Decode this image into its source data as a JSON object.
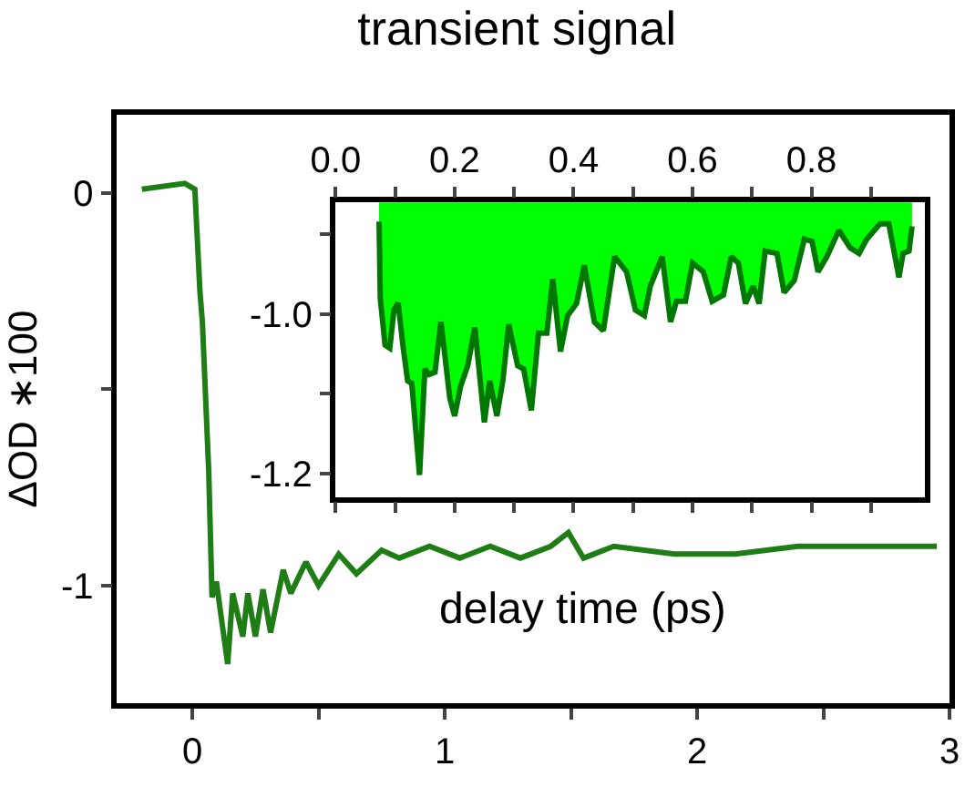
{
  "chart_data": [
    {
      "type": "line",
      "title": "transient signal",
      "xlabel": "delay time (ps)",
      "ylabel": "ΔOD ∗100",
      "x": [
        -0.2,
        -0.03,
        0.01,
        0.03,
        0.04,
        0.065,
        0.078,
        0.095,
        0.11,
        0.14,
        0.16,
        0.2,
        0.22,
        0.25,
        0.28,
        0.31,
        0.36,
        0.39,
        0.45,
        0.5,
        0.58,
        0.65,
        0.75,
        0.82,
        0.94,
        1.06,
        1.18,
        1.3,
        1.42,
        1.49,
        1.55,
        1.67,
        1.91,
        2.15,
        2.4,
        2.64,
        2.95
      ],
      "series": [
        {
          "color": "#1e7d14",
          "values": [
            0.01,
            0.025,
            0.01,
            -0.25,
            -0.33,
            -0.71,
            -1.03,
            -0.99,
            -1.06,
            -1.2,
            -1.02,
            -1.13,
            -1.02,
            -1.13,
            -1.01,
            -1.12,
            -0.96,
            -1.02,
            -0.94,
            -1.0,
            -0.92,
            -0.97,
            -0.91,
            -0.93,
            -0.9,
            -0.93,
            -0.9,
            -0.93,
            -0.9,
            -0.865,
            -0.93,
            -0.9,
            -0.92,
            -0.92,
            -0.9,
            -0.9,
            -0.9
          ]
        }
      ],
      "xlim": [
        -0.3,
        3.0
      ],
      "xticks": [
        0,
        {
          "value": 0.5,
          "label": null
        },
        1,
        {
          "value": 1.5,
          "label": null
        },
        2,
        {
          "value": 2.5,
          "label": null
        },
        3
      ],
      "ylim": [
        -1.3,
        0.2
      ],
      "yticks": [
        -1,
        {
          "value": -0.5,
          "label": null
        },
        0
      ]
    },
    {
      "type": "area",
      "x": [
        0.073,
        0.075,
        0.083,
        0.091,
        0.098,
        0.105,
        0.113,
        0.121,
        0.128,
        0.141,
        0.15,
        0.157,
        0.167,
        0.177,
        0.192,
        0.2,
        0.21,
        0.222,
        0.234,
        0.25,
        0.259,
        0.271,
        0.281,
        0.291,
        0.306,
        0.316,
        0.329,
        0.341,
        0.355,
        0.365,
        0.378,
        0.39,
        0.405,
        0.418,
        0.435,
        0.45,
        0.469,
        0.489,
        0.504,
        0.519,
        0.529,
        0.549,
        0.563,
        0.573,
        0.588,
        0.6,
        0.618,
        0.633,
        0.652,
        0.665,
        0.677,
        0.689,
        0.702,
        0.712,
        0.722,
        0.742,
        0.754,
        0.771,
        0.788,
        0.801,
        0.811,
        0.826,
        0.846,
        0.865,
        0.88,
        0.893,
        0.915,
        0.93,
        0.947,
        0.954,
        0.964,
        0.969
      ],
      "series": [
        {
          "type": "area",
          "color": "#00ff00",
          "values": [
            -0.884,
            -0.98,
            -1.039,
            -1.043,
            -0.995,
            -0.986,
            -1.039,
            -1.084,
            -1.087,
            -1.202,
            -1.069,
            -1.076,
            -1.073,
            -1.01,
            -1.106,
            -1.128,
            -1.091,
            -1.065,
            -1.017,
            -1.136,
            -1.084,
            -1.128,
            -1.084,
            -1.013,
            -1.065,
            -1.069,
            -1.121,
            -1.024,
            -1.024,
            -0.956,
            -1.047,
            -1.002,
            -0.987,
            -0.939,
            -1.01,
            -1.021,
            -0.928,
            -0.947,
            -0.995,
            -1.002,
            -0.965,
            -0.928,
            -1.01,
            -0.984,
            -0.984,
            -0.936,
            -0.947,
            -0.984,
            -0.976,
            -0.928,
            -0.936,
            -0.987,
            -0.965,
            -0.987,
            -0.921,
            -0.924,
            -0.973,
            -0.958,
            -0.906,
            -0.909,
            -0.947,
            -0.928,
            -0.895,
            -0.917,
            -0.924,
            -0.906,
            -0.887,
            -0.887,
            -0.954,
            -0.924,
            -0.921,
            -0.89
          ]
        }
      ],
      "xlim": [
        0,
        0.99
      ],
      "xticks": [
        {
          "value": 0,
          "label": "0.0"
        },
        {
          "value": 0.1,
          "label": null
        },
        {
          "value": 0.2,
          "label": "0.2"
        },
        {
          "value": 0.3,
          "label": null
        },
        {
          "value": 0.4,
          "label": "0.4"
        },
        {
          "value": 0.5,
          "label": null
        },
        {
          "value": 0.6,
          "label": "0.6"
        },
        {
          "value": 0.7,
          "label": null
        },
        {
          "value": 0.8,
          "label": "0.8"
        },
        {
          "value": 0.9,
          "label": null
        }
      ],
      "ylim": [
        -1.23,
        -0.86
      ],
      "yticks": [
        {
          "value": -1.2,
          "label": "-1.2"
        },
        {
          "value": -1.1,
          "label": null
        },
        {
          "value": -1.0,
          "label": "-1.0"
        },
        {
          "value": -0.9,
          "label": null
        }
      ]
    }
  ]
}
